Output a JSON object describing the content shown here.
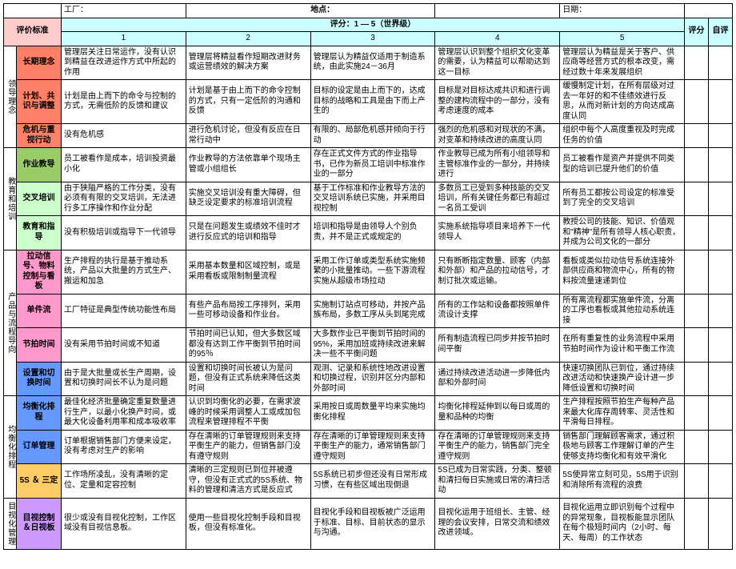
{
  "top": {
    "factory_label": "工厂：",
    "location_label": "地点：",
    "date_label": "日期："
  },
  "rating_header": "评分：1 — 5（世界级）",
  "col_eval_std": "评价标准",
  "col_nums": [
    "1",
    "2",
    "3",
    "4",
    "5"
  ],
  "col_score": "评分",
  "col_self": "自评",
  "groups": [
    {
      "vlabel": "领导理念",
      "rows": [
        {
          "label": "长期理念",
          "color": "c-salmon",
          "cells": [
            "管理层关注日常运作，没有认识到精益在改进运作方式中所起的作用",
            "管理层将精益看作短期改进财务或运营绩效的解决方案",
            "管理层认为精益仅适用于制造系统，由此实施24－36月",
            "管理层认识到整个组织文化变革的需要，认为精益可以帮助达到这一目标",
            "管理层认为精益是关于客户、供应商等经营方式的根本改变，需经过数十年来发展组织"
          ]
        },
        {
          "label": "计划、共识与调整",
          "color": "c-salmon",
          "cells": [
            "计划是由上而下的命令与控制的方式，无需低阶的反馈和建议",
            "计划是基于由上而下的命令控制的方式，只有一定低阶的沟通和反馈",
            "目标的设定是由上而下的，达成目标的战略和工具是由下而上产生的",
            "目标是对目标达成共识和进行调整的建构流程中的一部分，没有考虑速度的成本",
            "缓慢制定计划，在所有层级对过去一年好的和不佳绩效进行反思，从而对新计划的方向达成高度认同"
          ]
        },
        {
          "label": "危机与重视行动",
          "color": "c-salmon",
          "cells": [
            "没有危机感",
            "进行危机讨论，但没有反应在日常行动中",
            "有限的、局部危机感并倾向于行动",
            "强烈的危机感和对现状的不满，对变革和持续改进的高度认同",
            "组织中每个人高度重视及时完成任务的价值"
          ]
        }
      ]
    },
    {
      "vlabel": "教育和培训",
      "rows": [
        {
          "label": "作业教导",
          "color": "c-green",
          "cells": [
            "员工被看作是成本，培训投资最小化",
            "作业教导的方法依靠单个现场主管或小组组长",
            "存在正式文件方式的作业指导书，已作为新员工培训中标准作业的一部分",
            "作业教导已成为所有小组领导和主管标准作业的一部分，并持续进行",
            "员工被看作是资产并提供不同类型的培训已提升他们的价值"
          ]
        },
        {
          "label": "交叉培训",
          "color": "c-lgreen",
          "cells": [
            "由于狭隘严格的工作分类，没有必须有有限的交叉培训，无法进行多工序操作和作业分配",
            "实施交叉培训没有重大障碍，但缺乏设定要求的标准培训流程",
            "基于工作标准和作业教导方法的交叉培训系统已实施，并采用目视控制",
            "多数员工已受到多种技能的交叉培训，所有关键任务都已有超过一名员工受训",
            "所有员工都按公司设定的标准受到了完全的交叉培训"
          ]
        },
        {
          "label": "教育和指导",
          "color": "c-lgreen",
          "cells": [
            "没有积极培训或指导下一代领导",
            "只是在问题发生或绩效不佳时才进行反应式的培训和指导",
            "培训和指导是由领导人个别负责，并不是正式或规定的",
            "实施系统指导项目来培养下一代领导人",
            "教授公司的技能、知识、价值观和\"精神\"是所有领导人核心职责，并成为公司文化的一部分"
          ]
        }
      ]
    },
    {
      "vlabel": "产品与流程导向",
      "rows": [
        {
          "label": "拉动信号、物料控制与看板",
          "color": "c-pink",
          "cells": [
            "生产排程的执行是基于推动系统，产品以大批量的方式生产、搬运和加急",
            "采用基本数量和区域控制，或是采用看板或限制制量流程",
            "采用工作订单或类型系统实施频繁的小批量推动。一些下游流程实施从超级市场拉动",
            "只有断断指定数量、顾客（内部和外部）和产品的拉动信号，才制订批次或运输。",
            "看板或类似拉动信号系统连接外部供应商和物流中心，所有的物料按流量速递到位"
          ]
        },
        {
          "label": "单件流",
          "color": "c-pink",
          "cells": [
            "工厂特征是典型传统功能性布局",
            "有些产品布局按工序排列，采用一些可移动设备和作业台。",
            "实施制订站点可移动，并按产品族布局，多数工序从头到尾完成",
            "所有的工作站和设备都按照单件流设计支撑",
            "所有离流程都实施单件流，分离的工序也看板或其他拉动系统连接"
          ]
        },
        {
          "label": "节拍时间",
          "color": "c-pink",
          "cells": [
            "没有采用节拍时间或不知道",
            "节拍时间已认知，但大多数区域都没有达到工作平衡到节拍时间的95％",
            "大多数作业已平衡到节拍时间的95%，采用加班或持续改进来解决一些不平衡问题",
            "所有制造流程已同步并按节拍时间平衡",
            "在所有重复性的业务流程中采用节拍时间作为设计和平衡工作流"
          ]
        },
        {
          "label": "设置和切换时间",
          "color": "c-blue",
          "cells": [
            "由于是大批量或长生产周期，设置和切换时间长不认为是问题",
            "设置和切换时间长被认为是问题，但没有正式系统来降低这类时间",
            "观测、记录和系统性地改进设置和切换过程，识别并区分内部和外部时间",
            "通过持续改进活动进一步降低内部和外部时间",
            "快速切换团队已到位，通过持续改进活动和快速换产设计进一步降低设置和切换时间"
          ]
        }
      ]
    },
    {
      "vlabel": "均衡化排程",
      "rows": [
        {
          "label": "均衡化排程",
          "color": "c-blue",
          "cells": [
            "最佳化经济批量确定重复数量进行生产，以最小化换产时间，或最大化设备利用率和成本吸收率",
            "认识到均衡化的必要，在需求波峰的时候采用调整人工或成加包流程来管理排程不平衡",
            "采用按日或周数量平均来实施均衡化排程",
            "均衡化排程延伸到以每日或周的量和品种的均衡",
            "生产排程按照节拍生产每种产品来最大化库存周转率、灵活性和平滑每日排程。"
          ]
        },
        {
          "label": "订单管理",
          "color": "c-blue",
          "cells": [
            "订单根据销售部门方便来设定，没有考虑对生产的影响",
            "存在清晰的订单管理规则来支持平衡生产的能力，但销售部门没有遵守规则",
            "存在清晰的订单管理规则来支持平衡生产的能力，通常销售部门遵守规则",
            "存在清晰的订单管理规则来支持平衡生产的能力，销售部门完全遵守规则",
            "销售部门理解顾客需求，通过积极地与顾客工作理解订单的产生使够支持均衡化和有效平滑化"
          ]
        },
        {
          "label": "5S ＆ 三定",
          "color": "c-orange",
          "cells": [
            "工作场所凌乱，没有清晰的定位、定量和定容控制",
            "清晰的三定规则已到位并被遵守，但没有正式式的5S系统、物料的管理和清洁方式是反应式",
            "5S系统已初步但还没有日常形成习惯，在有些区域出现倒退",
            "5S已成为日常实践，分类、整顿和清扫每日实施或日常的清扫活动",
            "5S使异常立刻可见，5S用于识别和消除所有流程的浪费"
          ]
        }
      ]
    },
    {
      "vlabel": "目视化管理",
      "rows": [
        {
          "label": "目视控制＆日视板",
          "color": "c-lav",
          "cells": [
            "很少或没有目视化控制，工作区域没有目视信息板。",
            "使用一些目视化控制手段和目视板，但没有标准化。",
            "目视化手段和目视板被广泛运用于标准、目标、目前状态的显示与沟通。",
            "目视化运用于班组长、主管、经理的会议安排，日常交流和绩效改进领域。",
            "目视化运用立即识别每个过程中的异常现象，目视板能显示团队在每个极短时间内（2小时、每天、每周）的工作状态"
          ]
        }
      ]
    }
  ]
}
